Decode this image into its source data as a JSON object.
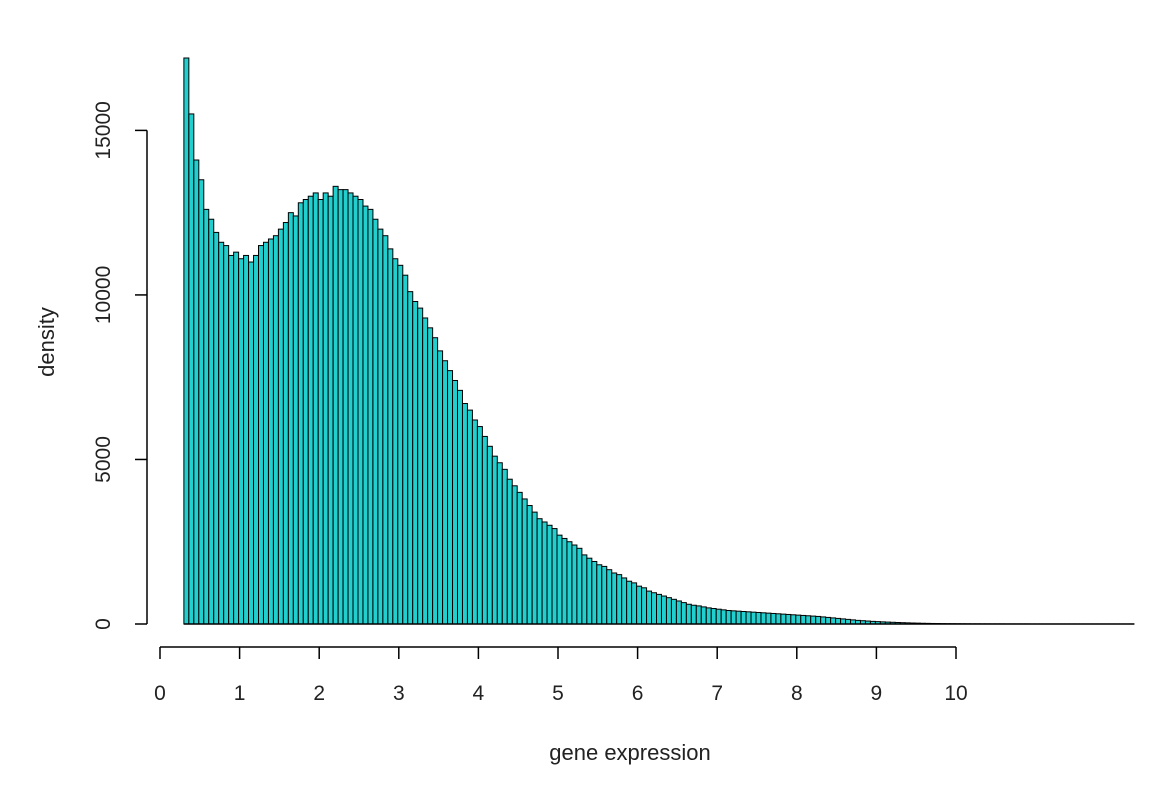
{
  "chart_data": {
    "type": "bar",
    "title": "",
    "xlabel": "gene expression",
    "ylabel": "density",
    "x_ticks": [
      "0",
      "1",
      "2",
      "3",
      "4",
      "5",
      "6",
      "7",
      "8",
      "9",
      "10"
    ],
    "y_ticks": [
      "0",
      "5000",
      "10000",
      "15000"
    ],
    "xlim": [
      0,
      10
    ],
    "ylim": [
      0,
      17200
    ],
    "bin_start": 0.3,
    "bin_width": 0.0625,
    "fill_color": "#22cfcf",
    "edge_color": "#000000",
    "values": [
      17200,
      15500,
      14100,
      13500,
      12600,
      12300,
      11900,
      11600,
      11500,
      11200,
      11300,
      11100,
      11200,
      11000,
      11200,
      11500,
      11600,
      11700,
      11800,
      12000,
      12200,
      12500,
      12400,
      12800,
      12900,
      13000,
      13100,
      12900,
      13100,
      13000,
      13300,
      13200,
      13200,
      13100,
      13000,
      12900,
      12700,
      12600,
      12300,
      12000,
      11800,
      11400,
      11100,
      10900,
      10600,
      10100,
      9800,
      9600,
      9300,
      9000,
      8700,
      8300,
      8000,
      7700,
      7400,
      7100,
      6700,
      6500,
      6200,
      6000,
      5700,
      5400,
      5100,
      4900,
      4700,
      4400,
      4200,
      4000,
      3800,
      3600,
      3400,
      3200,
      3100,
      3000,
      2900,
      2700,
      2600,
      2500,
      2400,
      2300,
      2100,
      2000,
      1900,
      1800,
      1750,
      1650,
      1550,
      1500,
      1400,
      1300,
      1250,
      1150,
      1100,
      1000,
      950,
      900,
      850,
      800,
      750,
      700,
      650,
      600,
      570,
      550,
      520,
      490,
      470,
      450,
      430,
      410,
      400,
      390,
      380,
      370,
      360,
      350,
      340,
      330,
      320,
      310,
      300,
      290,
      280,
      270,
      260,
      250,
      240,
      230,
      215,
      200,
      185,
      170,
      155,
      140,
      125,
      110,
      100,
      90,
      80,
      72,
      65,
      58,
      52,
      46,
      40,
      35,
      30,
      26,
      22,
      19,
      16,
      14,
      12,
      10,
      9,
      8,
      7,
      6,
      5,
      5,
      4,
      4,
      3,
      3,
      3,
      2,
      2,
      2,
      2,
      2,
      1,
      1,
      1,
      1,
      1,
      1,
      1,
      1,
      1,
      1,
      1,
      1,
      1,
      1,
      1,
      1,
      1,
      1,
      1,
      1,
      1
    ]
  }
}
